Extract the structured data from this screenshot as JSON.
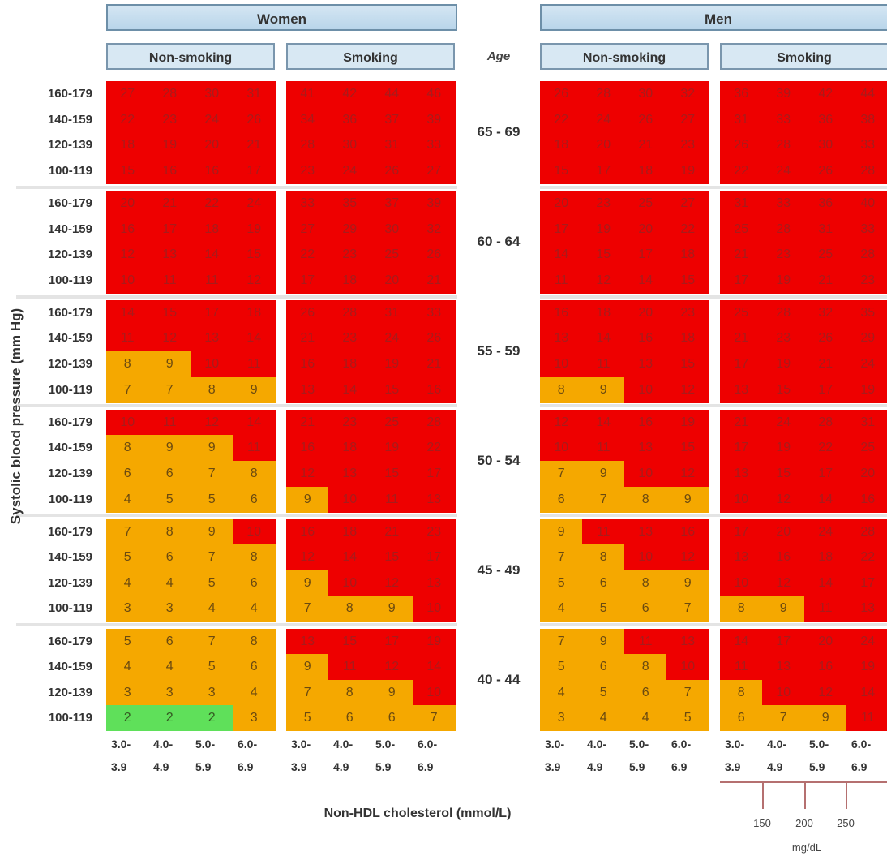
{
  "chart_data": {
    "type": "heatmap",
    "sex_headers": [
      "Women",
      "Men"
    ],
    "smoking_headers": [
      "Non-smoking",
      "Smoking"
    ],
    "age_header": "Age",
    "age_groups": [
      "65 - 69",
      "60 - 64",
      "55 - 59",
      "50 - 54",
      "45 - 49",
      "40 - 44"
    ],
    "sbp_rows": [
      "160-179",
      "140-159",
      "120-139",
      "100-119"
    ],
    "cholesterol_categories": [
      {
        "top": "3.0-",
        "bottom": "3.9"
      },
      {
        "top": "4.0-",
        "bottom": "4.9"
      },
      {
        "top": "5.0-",
        "bottom": "5.9"
      },
      {
        "top": "6.0-",
        "bottom": "6.9"
      }
    ],
    "ylabel": "Systolic blood pressure (mm Hg)",
    "xlabel": "Non-HDL cholesterol (mmol/L)",
    "secondary_axis": {
      "ticks": [
        "150",
        "200",
        "250"
      ],
      "unit": "mg/dL"
    },
    "colors": {
      "red": "#ee0000",
      "amber": "#f5a800",
      "green": "#5fe05a"
    },
    "panels": [
      {
        "sex": "Women",
        "smoking": "Non-smoking",
        "values": [
          [
            [
              27,
              28,
              30,
              31
            ],
            [
              22,
              23,
              24,
              26
            ],
            [
              18,
              19,
              20,
              21
            ],
            [
              15,
              16,
              16,
              17
            ]
          ],
          [
            [
              20,
              21,
              22,
              24
            ],
            [
              16,
              17,
              18,
              19
            ],
            [
              12,
              13,
              14,
              15
            ],
            [
              10,
              11,
              11,
              12
            ]
          ],
          [
            [
              14,
              15,
              17,
              18
            ],
            [
              11,
              12,
              13,
              14
            ],
            [
              8,
              9,
              10,
              11
            ],
            [
              7,
              7,
              8,
              9
            ]
          ],
          [
            [
              10,
              11,
              12,
              14
            ],
            [
              8,
              9,
              9,
              11
            ],
            [
              6,
              6,
              7,
              8
            ],
            [
              4,
              5,
              5,
              6
            ]
          ],
          [
            [
              7,
              8,
              9,
              10
            ],
            [
              5,
              6,
              7,
              8
            ],
            [
              4,
              4,
              5,
              6
            ],
            [
              3,
              3,
              4,
              4
            ]
          ],
          [
            [
              5,
              6,
              7,
              8
            ],
            [
              4,
              4,
              5,
              6
            ],
            [
              3,
              3,
              3,
              4
            ],
            [
              2,
              2,
              2,
              3
            ]
          ]
        ]
      },
      {
        "sex": "Women",
        "smoking": "Smoking",
        "values": [
          [
            [
              41,
              42,
              44,
              46
            ],
            [
              34,
              36,
              37,
              39
            ],
            [
              28,
              30,
              31,
              33
            ],
            [
              23,
              24,
              26,
              27
            ]
          ],
          [
            [
              33,
              35,
              37,
              39
            ],
            [
              27,
              29,
              30,
              32
            ],
            [
              22,
              23,
              25,
              26
            ],
            [
              17,
              18,
              20,
              21
            ]
          ],
          [
            [
              26,
              28,
              31,
              33
            ],
            [
              21,
              23,
              24,
              26
            ],
            [
              16,
              18,
              19,
              21
            ],
            [
              13,
              14,
              15,
              16
            ]
          ],
          [
            [
              21,
              23,
              25,
              28
            ],
            [
              16,
              18,
              19,
              22
            ],
            [
              12,
              13,
              15,
              17
            ],
            [
              9,
              10,
              11,
              13
            ]
          ],
          [
            [
              16,
              18,
              21,
              23
            ],
            [
              12,
              14,
              15,
              17
            ],
            [
              9,
              10,
              12,
              13
            ],
            [
              7,
              8,
              9,
              10
            ]
          ],
          [
            [
              13,
              15,
              17,
              19
            ],
            [
              9,
              11,
              12,
              14
            ],
            [
              7,
              8,
              9,
              10
            ],
            [
              5,
              6,
              6,
              7
            ]
          ]
        ]
      },
      {
        "sex": "Men",
        "smoking": "Non-smoking",
        "values": [
          [
            [
              26,
              28,
              30,
              32
            ],
            [
              22,
              24,
              26,
              27
            ],
            [
              18,
              20,
              21,
              23
            ],
            [
              15,
              17,
              18,
              19
            ]
          ],
          [
            [
              20,
              23,
              25,
              27
            ],
            [
              17,
              19,
              20,
              22
            ],
            [
              14,
              15,
              17,
              18
            ],
            [
              11,
              12,
              14,
              15
            ]
          ],
          [
            [
              16,
              18,
              20,
              23
            ],
            [
              13,
              14,
              16,
              18
            ],
            [
              10,
              11,
              13,
              15
            ],
            [
              8,
              9,
              10,
              12
            ]
          ],
          [
            [
              12,
              14,
              16,
              19
            ],
            [
              10,
              11,
              13,
              15
            ],
            [
              7,
              9,
              10,
              12
            ],
            [
              6,
              7,
              8,
              9
            ]
          ],
          [
            [
              9,
              11,
              13,
              16
            ],
            [
              7,
              8,
              10,
              12
            ],
            [
              5,
              6,
              8,
              9
            ],
            [
              4,
              5,
              6,
              7
            ]
          ],
          [
            [
              7,
              9,
              11,
              13
            ],
            [
              5,
              6,
              8,
              10
            ],
            [
              4,
              5,
              6,
              7
            ],
            [
              3,
              4,
              4,
              5
            ]
          ]
        ]
      },
      {
        "sex": "Men",
        "smoking": "Smoking",
        "values": [
          [
            [
              36,
              39,
              42,
              44
            ],
            [
              31,
              33,
              36,
              38
            ],
            [
              26,
              28,
              30,
              33
            ],
            [
              22,
              24,
              26,
              28
            ]
          ],
          [
            [
              31,
              33,
              36,
              40
            ],
            [
              25,
              28,
              31,
              33
            ],
            [
              21,
              23,
              25,
              28
            ],
            [
              17,
              19,
              21,
              23
            ]
          ],
          [
            [
              25,
              28,
              32,
              35
            ],
            [
              21,
              23,
              26,
              29
            ],
            [
              17,
              19,
              21,
              24
            ],
            [
              13,
              15,
              17,
              19
            ]
          ],
          [
            [
              21,
              24,
              28,
              31
            ],
            [
              17,
              19,
              22,
              25
            ],
            [
              13,
              15,
              17,
              20
            ],
            [
              10,
              12,
              14,
              16
            ]
          ],
          [
            [
              17,
              20,
              24,
              28
            ],
            [
              13,
              16,
              18,
              22
            ],
            [
              10,
              12,
              14,
              17
            ],
            [
              8,
              9,
              11,
              13
            ]
          ],
          [
            [
              14,
              17,
              20,
              24
            ],
            [
              11,
              13,
              16,
              19
            ],
            [
              8,
              10,
              12,
              14
            ],
            [
              6,
              7,
              9,
              11
            ]
          ]
        ]
      }
    ]
  }
}
